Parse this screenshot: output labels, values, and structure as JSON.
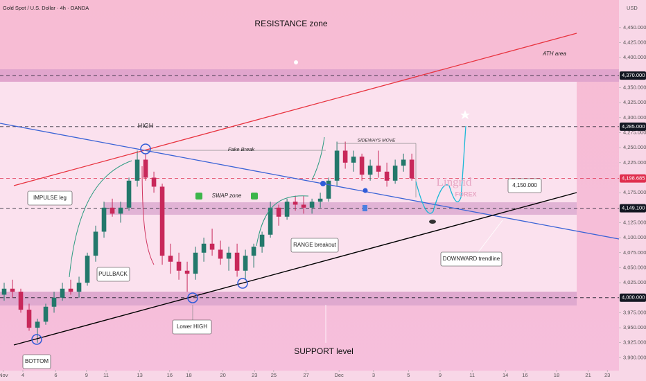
{
  "header": {
    "symbol": "Gold Spot / U.S. Dollar · 4h · OANDA",
    "currency": "USD"
  },
  "chart_data": {
    "type": "candlestick",
    "up_color": "#23786b",
    "down_color": "#c8285a",
    "xlim": [
      -0.5,
      73.9
    ],
    "ylim": [
      3882,
      4496
    ],
    "xticks": [
      {
        "value": -0.1,
        "label": "Nov"
      },
      {
        "value": 2.25,
        "label": "4"
      },
      {
        "value": 6.2,
        "label": "6"
      },
      {
        "value": 9.9,
        "label": "9"
      },
      {
        "value": 12.25,
        "label": "11"
      },
      {
        "value": 16.3,
        "label": "13"
      },
      {
        "value": 19.9,
        "label": "16"
      },
      {
        "value": 22.2,
        "label": "18"
      },
      {
        "value": 26.3,
        "label": "20"
      },
      {
        "value": 30.1,
        "label": "23"
      },
      {
        "value": 32.4,
        "label": "25"
      },
      {
        "value": 36.3,
        "label": "27"
      },
      {
        "value": 40.25,
        "label": "Dec"
      },
      {
        "value": 44.4,
        "label": "3"
      },
      {
        "value": 48.6,
        "label": "5"
      },
      {
        "value": 52.4,
        "label": "9"
      },
      {
        "value": 56.25,
        "label": "11"
      },
      {
        "value": 60.25,
        "label": "14"
      },
      {
        "value": 62.6,
        "label": "16"
      },
      {
        "value": 66.4,
        "label": "18"
      },
      {
        "value": 70.2,
        "label": "21"
      },
      {
        "value": 72.5,
        "label": "23"
      }
    ],
    "yticks": [
      {
        "value": 3900,
        "label": "3,900.000"
      },
      {
        "value": 3925,
        "label": "3,925.000"
      },
      {
        "value": 3950,
        "label": "3,950.000"
      },
      {
        "value": 3975,
        "label": "3,975.000"
      },
      {
        "value": 4025,
        "label": "4,025.000"
      },
      {
        "value": 4050,
        "label": "4,050.000"
      },
      {
        "value": 4075,
        "label": "4,075.000"
      },
      {
        "value": 4100,
        "label": "4,100.000"
      },
      {
        "value": 4125,
        "label": "4,125.000"
      },
      {
        "value": 4175,
        "label": "4,175.000"
      },
      {
        "value": 4225,
        "label": "4,225.000"
      },
      {
        "value": 4250,
        "label": "4,250.000"
      },
      {
        "value": 4275,
        "label": "4,275.000"
      },
      {
        "value": 4300,
        "label": "4,300.000"
      },
      {
        "value": 4325,
        "label": "4,325.000"
      },
      {
        "value": 4350,
        "label": "4,350.000"
      },
      {
        "value": 4400,
        "label": "4,400.000"
      },
      {
        "value": 4425,
        "label": "4,425.000"
      },
      {
        "value": 4450,
        "label": "4,450.000"
      }
    ],
    "price_lines": [
      {
        "value": 4370,
        "label": "4,370.000",
        "color": "#131722"
      },
      {
        "value": 4285,
        "label": "4,285.000",
        "color": "#131722"
      },
      {
        "value": 4198.685,
        "label": "4,198.685",
        "color": "#e0304f"
      },
      {
        "value": 4149.1,
        "label": "4,149.100",
        "color": "#131722"
      },
      {
        "value": 4000,
        "label": "4,000.000",
        "color": "#131722"
      }
    ],
    "open": [
      4005,
      4015,
      4010,
      3980,
      3950,
      3960,
      3985,
      4000,
      4015,
      4010,
      4025,
      4070,
      4110,
      4150,
      4140,
      4150,
      4195,
      4230,
      4200,
      4185,
      4070,
      4060,
      4045,
      4040,
      4075,
      4090,
      4080,
      4065,
      4075,
      4045,
      4070,
      4085,
      4105,
      4150,
      4135,
      4160,
      4155,
      4150,
      4160,
      4165,
      4195,
      4245,
      4225,
      4235,
      4205,
      4220,
      4210,
      4195,
      4220,
      4230
    ],
    "high": [
      4025,
      4030,
      4015,
      3990,
      3965,
      3990,
      4010,
      4025,
      4030,
      4035,
      4075,
      4120,
      4160,
      4165,
      4160,
      4200,
      4245,
      4240,
      4210,
      4190,
      4090,
      4075,
      4060,
      4085,
      4100,
      4115,
      4095,
      4085,
      4090,
      4080,
      4090,
      4110,
      4160,
      4155,
      4165,
      4170,
      4170,
      4165,
      4175,
      4200,
      4260,
      4260,
      4245,
      4240,
      4230,
      4245,
      4225,
      4230,
      4240,
      4240
    ],
    "low": [
      3995,
      4000,
      3975,
      3945,
      3925,
      3955,
      3975,
      3995,
      4005,
      4000,
      4020,
      4060,
      4100,
      4135,
      4125,
      4145,
      4185,
      4195,
      4175,
      4055,
      4040,
      4030,
      4010,
      4030,
      4060,
      4070,
      4055,
      4045,
      4035,
      4030,
      4050,
      4075,
      4100,
      4120,
      4130,
      4145,
      4140,
      4140,
      4150,
      4160,
      4185,
      4215,
      4210,
      4195,
      4195,
      4200,
      4185,
      4190,
      4210,
      4195
    ],
    "close": [
      4015,
      4010,
      3980,
      3950,
      3960,
      3985,
      4000,
      4015,
      4010,
      4025,
      4070,
      4110,
      4150,
      4140,
      4150,
      4195,
      4230,
      4200,
      4185,
      4070,
      4060,
      4045,
      4040,
      4075,
      4090,
      4080,
      4065,
      4075,
      4045,
      4070,
      4085,
      4105,
      4150,
      4135,
      4160,
      4155,
      4150,
      4160,
      4165,
      4195,
      4245,
      4225,
      4235,
      4205,
      4220,
      4210,
      4195,
      4220,
      4230,
      4198.685
    ]
  },
  "annotations": {
    "resistance": "RESISTANCE zone",
    "ath": "ATH area",
    "high": "HIGH",
    "fake_break": "Fake Break",
    "sideways": "SIDEWAYS MOVE",
    "impulse": "IMPULSE leg",
    "swap": "SWAP zone",
    "pullback": "PULLBACK",
    "range_breakout": "RANGE breakout",
    "lower_high": "Lower HIGH",
    "bottom": "BOTTOM",
    "support": "SUPPORT level",
    "downward": "DOWNWARD trendline",
    "target": "4,150.000",
    "brand": "Lingrid",
    "brand_sub": "FOREX"
  }
}
